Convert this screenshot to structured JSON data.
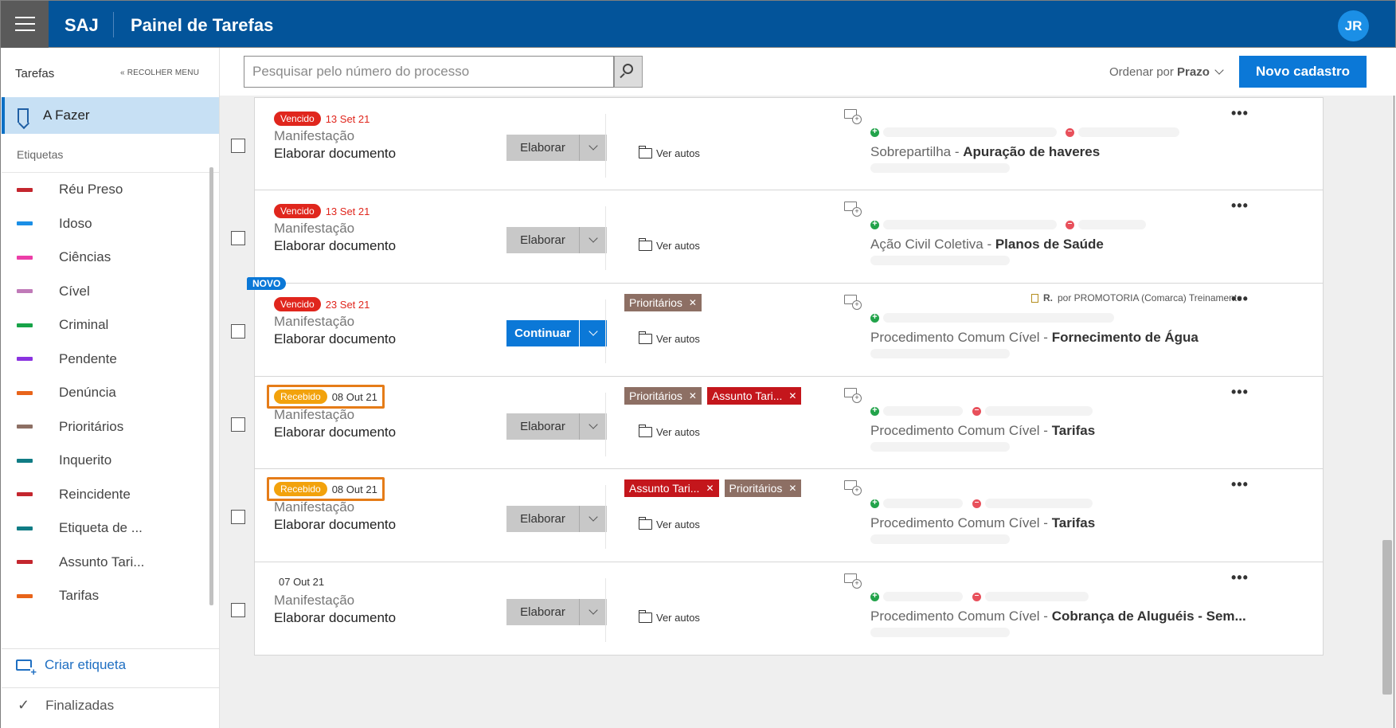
{
  "header": {
    "brand": "SAJ",
    "title": "Painel de Tarefas",
    "user_initials": "JR"
  },
  "sidebar": {
    "title": "Tarefas",
    "collapse_label": "« RECOLHER MENU",
    "active_item": "A Fazer",
    "section_label": "Etiquetas",
    "tags": [
      {
        "label": "Réu Preso",
        "color": "#c4262e"
      },
      {
        "label": "Idoso",
        "color": "#1b8fe6"
      },
      {
        "label": "Ciências",
        "color": "#ec3ea8"
      },
      {
        "label": "Cível",
        "color": "#c07ab8"
      },
      {
        "label": "Criminal",
        "color": "#17a348"
      },
      {
        "label": "Pendente",
        "color": "#8a33e0"
      },
      {
        "label": "Denúncia",
        "color": "#e8641a"
      },
      {
        "label": "Prioritários",
        "color": "#8d6f64"
      },
      {
        "label": "Inquerito",
        "color": "#107c85"
      },
      {
        "label": "Reincidente",
        "color": "#c4262e"
      },
      {
        "label": "Etiqueta de ...",
        "color": "#107c85"
      },
      {
        "label": "Assunto Tari...",
        "color": "#c4262e"
      },
      {
        "label": "Tarifas",
        "color": "#e8641a"
      }
    ],
    "create_tag": "Criar etiqueta",
    "finished": "Finalizadas"
  },
  "toolbar": {
    "search_placeholder": "Pesquisar pelo número do processo",
    "order_prefix": "Ordenar por",
    "order_value": "Prazo",
    "new_button": "Novo cadastro"
  },
  "tasks": [
    {
      "status": "Vencido",
      "status_color": "#e0261d",
      "date": "13 Set 21",
      "tipo": "Manifestação",
      "acao": "Elaborar documento",
      "button": "Elaborar",
      "ver_autos": "Ver autos",
      "classe": "Sobrepartilha",
      "assunto": "Apuração de haveres",
      "tags": []
    },
    {
      "status": "Vencido",
      "status_color": "#e0261d",
      "date": "13 Set 21",
      "tipo": "Manifestação",
      "acao": "Elaborar documento",
      "button": "Elaborar",
      "ver_autos": "Ver autos",
      "classe": "Ação Civil Coletiva",
      "assunto": "Planos de Saúde",
      "tags": []
    },
    {
      "novo": "NOVO",
      "status": "Vencido",
      "status_color": "#e0261d",
      "date": "23 Set 21",
      "tipo": "Manifestação",
      "acao": "Elaborar documento",
      "button": "Continuar",
      "ver_autos": "Ver autos",
      "classe": "Procedimento Comum Cível",
      "assunto": "Fornecimento de Água",
      "origin_prefix": "R.",
      "origin_text": "por PROMOTORIA (Comarca) Treinamento",
      "tags": [
        {
          "label": "Prioritários",
          "color": "#8d6f64"
        }
      ]
    },
    {
      "status": "Recebido",
      "status_color": "#f2a20c",
      "date": "08 Out 21",
      "tipo": "Manifestação",
      "acao": "Elaborar documento",
      "button": "Elaborar",
      "ver_autos": "Ver autos",
      "classe": "Procedimento Comum Cível",
      "assunto": "Tarifas",
      "tags": [
        {
          "label": "Prioritários",
          "color": "#8d6f64"
        },
        {
          "label": "Assunto Tari...",
          "color": "#c4161c"
        }
      ]
    },
    {
      "status": "Recebido",
      "status_color": "#f2a20c",
      "date": "08 Out 21",
      "tipo": "Manifestação",
      "acao": "Elaborar documento",
      "button": "Elaborar",
      "ver_autos": "Ver autos",
      "classe": "Procedimento Comum Cível",
      "assunto": "Tarifas",
      "tags": [
        {
          "label": "Assunto Tari...",
          "color": "#c4161c"
        },
        {
          "label": "Prioritários",
          "color": "#8d6f64"
        }
      ]
    },
    {
      "date": "07 Out 21",
      "tipo": "Manifestação",
      "acao": "Elaborar documento",
      "button": "Elaborar",
      "ver_autos": "Ver autos",
      "classe": "Procedimento Comum Cível",
      "assunto": "Cobrança de Aluguéis - Sem...",
      "tags": []
    }
  ]
}
